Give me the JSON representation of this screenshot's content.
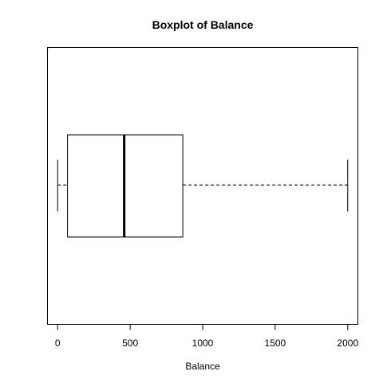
{
  "chart_data": {
    "type": "boxplot",
    "orientation": "horizontal",
    "title": "Boxplot of Balance",
    "xlabel": "Balance",
    "ylabel": "",
    "xlim": [
      -70,
      2070
    ],
    "x_ticks": [
      0,
      500,
      1000,
      1500,
      2000
    ],
    "x_tick_labels": [
      "0",
      "500",
      "1000",
      "1500",
      "2000"
    ],
    "grid": false,
    "legend": "none",
    "box": {
      "whisker_low": 0,
      "q1": 68,
      "median": 459,
      "q3": 863,
      "whisker_high": 2000
    }
  }
}
